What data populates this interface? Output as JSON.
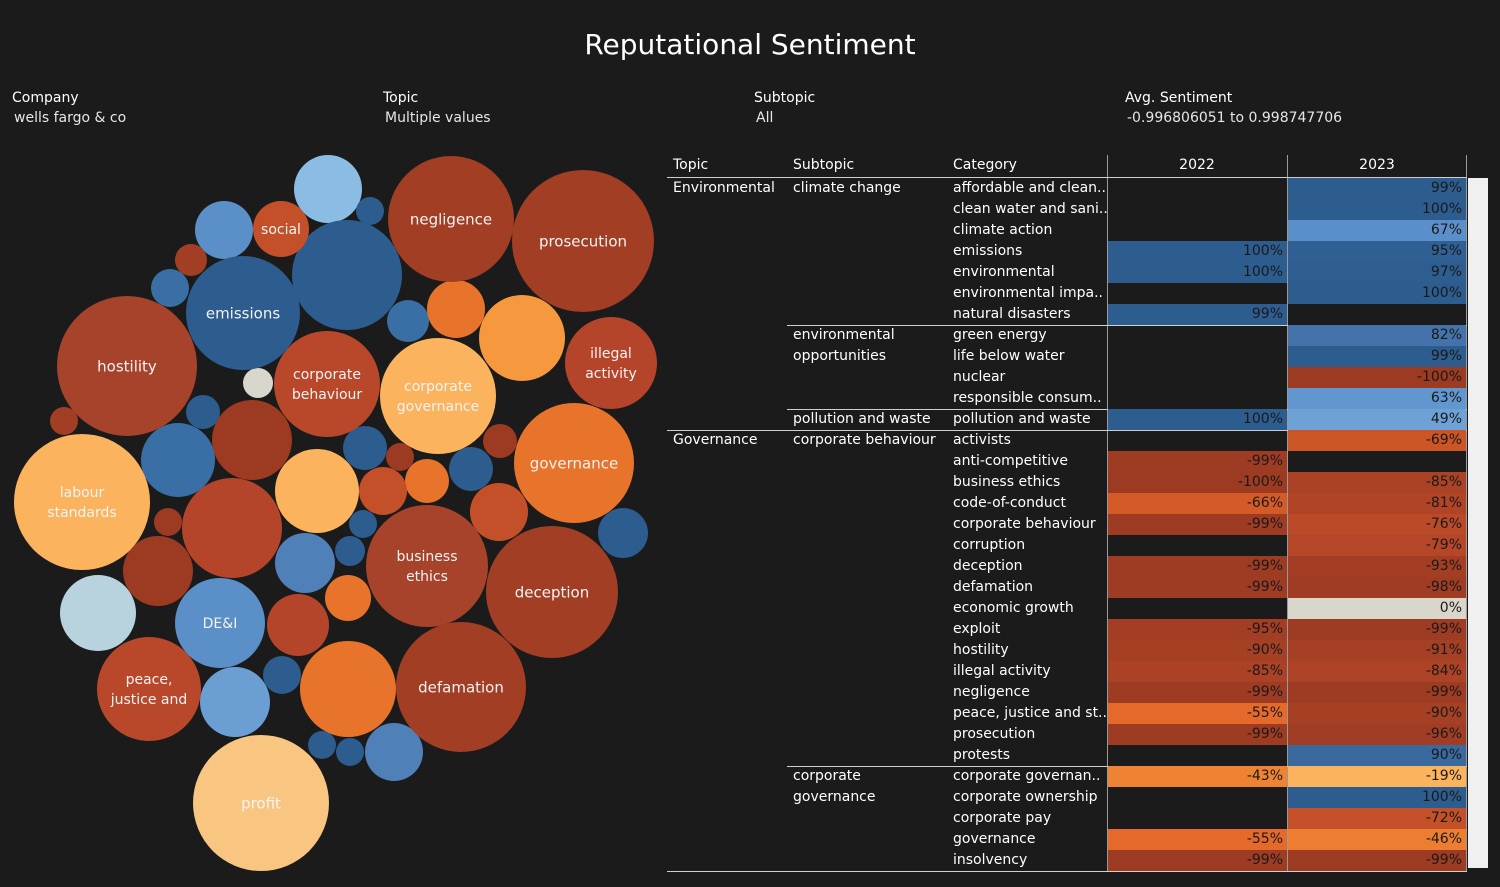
{
  "title": "Reputational Sentiment",
  "filters": {
    "company": {
      "label": "Company",
      "value": "wells fargo & co"
    },
    "topic": {
      "label": "Topic",
      "value": "Multiple values"
    },
    "subtopic": {
      "label": "Subtopic",
      "value": "All"
    },
    "avg_sentiment": {
      "label": "Avg. Sentiment",
      "value": "-0.996806051 to 0.998747706"
    }
  },
  "colors": {
    "background": "#1b1b1b",
    "positive_dark": "#2d5c8f",
    "positive_mid": "#4f80b8",
    "positive_light": "#6b9fd4",
    "negative_dark": "#9c3a22",
    "negative_mid": "#c4502a",
    "negative_orange": "#e8732b",
    "negative_light": "#f7b36a",
    "neutral": "#d9d6cc"
  },
  "chart_data": [
    {
      "type": "bubble",
      "bubbles": [
        {
          "label": "prosecution",
          "color": "#a23e24"
        },
        {
          "label": "negligence",
          "color": "#a23e24"
        },
        {
          "label": "social",
          "color": "#c4502a"
        },
        {
          "label": "emissions",
          "color": "#2d5c8f"
        },
        {
          "label": "hostility",
          "color": "#a7432a"
        },
        {
          "label": "corporate behaviour",
          "color": "#b9482a"
        },
        {
          "label": "corporate governance",
          "color": "#fbb35e"
        },
        {
          "label": "illegal activity",
          "color": "#b5452a"
        },
        {
          "label": "governance",
          "color": "#e8732b"
        },
        {
          "label": "labour standards",
          "color": "#fbb35e"
        },
        {
          "label": "business ethics",
          "color": "#a7432a"
        },
        {
          "label": "deception",
          "color": "#a23e24"
        },
        {
          "label": "DE&I",
          "color": "#5a8fc8"
        },
        {
          "label": "peace, justice and",
          "color": "#b9482a"
        },
        {
          "label": "defamation",
          "color": "#a23e24"
        },
        {
          "label": "profit",
          "color": "#f8c680"
        }
      ]
    },
    {
      "type": "table",
      "columns": [
        "Topic",
        "Subtopic",
        "Category",
        "2022",
        "2023"
      ],
      "rows": [
        {
          "topic": "Environmental",
          "subtopic": "climate change",
          "category": "affordable and clean..",
          "y2022": "",
          "c2022": "",
          "y2023": "99%",
          "c2023": "#2d5c8f"
        },
        {
          "topic": "",
          "subtopic": "",
          "category": "clean water and sani..",
          "y2022": "",
          "c2022": "",
          "y2023": "100%",
          "c2023": "#2d5c8f"
        },
        {
          "topic": "",
          "subtopic": "",
          "category": "climate action",
          "y2022": "",
          "c2022": "",
          "y2023": "67%",
          "c2023": "#5b8fc9"
        },
        {
          "topic": "",
          "subtopic": "",
          "category": "emissions",
          "y2022": "100%",
          "c2022": "#2d5c8f",
          "y2023": "95%",
          "c2023": "#305f93"
        },
        {
          "topic": "",
          "subtopic": "",
          "category": "environmental",
          "y2022": "100%",
          "c2022": "#2d5c8f",
          "y2023": "97%",
          "c2023": "#2e5d90"
        },
        {
          "topic": "",
          "subtopic": "",
          "category": "environmental impa..",
          "y2022": "",
          "c2022": "",
          "y2023": "100%",
          "c2023": "#2d5c8f"
        },
        {
          "topic": "",
          "subtopic": "",
          "category": "natural disasters",
          "y2022": "99%",
          "c2022": "#2d5c8f",
          "y2023": "",
          "c2023": ""
        },
        {
          "topic": "",
          "subtopic": "environmental opportunities",
          "category": "green energy",
          "y2022": "",
          "c2022": "",
          "y2023": "82%",
          "c2023": "#4473ab"
        },
        {
          "topic": "",
          "subtopic": "",
          "category": "life below water",
          "y2022": "",
          "c2022": "",
          "y2023": "99%",
          "c2023": "#2d5c8f"
        },
        {
          "topic": "",
          "subtopic": "",
          "category": "nuclear",
          "y2022": "",
          "c2022": "",
          "y2023": "-100%",
          "c2023": "#9c3a22"
        },
        {
          "topic": "",
          "subtopic": "",
          "category": "responsible consum..",
          "y2022": "",
          "c2022": "",
          "y2023": "63%",
          "c2023": "#6196ce"
        },
        {
          "topic": "",
          "subtopic": "pollution and waste",
          "category": "pollution and waste",
          "y2022": "100%",
          "c2022": "#2d5c8f",
          "y2023": "49%",
          "c2023": "#6ea2d6"
        },
        {
          "topic": "Governance",
          "subtopic": "corporate behaviour",
          "category": "activists",
          "y2022": "",
          "c2022": "",
          "y2023": "-69%",
          "c2023": "#cc5526"
        },
        {
          "topic": "",
          "subtopic": "",
          "category": "anti-competitive",
          "y2022": "-99%",
          "c2022": "#9e3b23",
          "y2023": "",
          "c2023": ""
        },
        {
          "topic": "",
          "subtopic": "",
          "category": "business ethics",
          "y2022": "-100%",
          "c2022": "#9c3a22",
          "y2023": "-85%",
          "c2023": "#ab4226"
        },
        {
          "topic": "",
          "subtopic": "",
          "category": "code-of-conduct",
          "y2022": "-66%",
          "c2022": "#d45b27",
          "y2023": "-81%",
          "c2023": "#b14427"
        },
        {
          "topic": "",
          "subtopic": "",
          "category": "corporate behaviour",
          "y2022": "-99%",
          "c2022": "#9e3b23",
          "y2023": "-76%",
          "c2023": "#bb4a28"
        },
        {
          "topic": "",
          "subtopic": "",
          "category": "corruption",
          "y2022": "",
          "c2022": "",
          "y2023": "-79%",
          "c2023": "#b54628"
        },
        {
          "topic": "",
          "subtopic": "",
          "category": "deception",
          "y2022": "-99%",
          "c2022": "#9e3b23",
          "y2023": "-93%",
          "c2023": "#a33e24"
        },
        {
          "topic": "",
          "subtopic": "",
          "category": "defamation",
          "y2022": "-99%",
          "c2022": "#9e3b23",
          "y2023": "-98%",
          "c2023": "#9f3c23"
        },
        {
          "topic": "",
          "subtopic": "",
          "category": "economic growth",
          "y2022": "",
          "c2022": "",
          "y2023": "0%",
          "c2023": "#d9d6cc"
        },
        {
          "topic": "",
          "subtopic": "",
          "category": "exploit",
          "y2022": "-95%",
          "c2022": "#a33e24",
          "y2023": "-99%",
          "c2023": "#9e3b23"
        },
        {
          "topic": "",
          "subtopic": "",
          "category": "hostility",
          "y2022": "-90%",
          "c2022": "#a64025",
          "y2023": "-91%",
          "c2023": "#a54025"
        },
        {
          "topic": "",
          "subtopic": "",
          "category": "illegal activity",
          "y2022": "-85%",
          "c2022": "#ab4226",
          "y2023": "-84%",
          "c2023": "#ac4326"
        },
        {
          "topic": "",
          "subtopic": "",
          "category": "negligence",
          "y2022": "-99%",
          "c2022": "#9e3b23",
          "y2023": "-99%",
          "c2023": "#9e3b23"
        },
        {
          "topic": "",
          "subtopic": "",
          "category": "peace, justice and st..",
          "y2022": "-55%",
          "c2022": "#e4692a",
          "y2023": "-90%",
          "c2023": "#a64025"
        },
        {
          "topic": "",
          "subtopic": "",
          "category": "prosecution",
          "y2022": "-99%",
          "c2022": "#9e3b23",
          "y2023": "-96%",
          "c2023": "#a13d24"
        },
        {
          "topic": "",
          "subtopic": "",
          "category": "protests",
          "y2022": "",
          "c2022": "",
          "y2023": "90%",
          "c2023": "#3a699f"
        },
        {
          "topic": "",
          "subtopic": "corporate governance",
          "category": "corporate governan..",
          "y2022": "-43%",
          "c2022": "#ee8433",
          "y2023": "-19%",
          "c2023": "#fbb35e"
        },
        {
          "topic": "",
          "subtopic": "",
          "category": "corporate ownership",
          "y2022": "",
          "c2022": "",
          "y2023": "100%",
          "c2023": "#2d5c8f"
        },
        {
          "topic": "",
          "subtopic": "",
          "category": "corporate pay",
          "y2022": "",
          "c2022": "",
          "y2023": "-72%",
          "c2023": "#c4502a"
        },
        {
          "topic": "",
          "subtopic": "",
          "category": "governance",
          "y2022": "-55%",
          "c2022": "#e4692a",
          "y2023": "-46%",
          "c2023": "#ed7e31"
        },
        {
          "topic": "",
          "subtopic": "",
          "category": "insolvency",
          "y2022": "-99%",
          "c2022": "#9e3b23",
          "y2023": "-99%",
          "c2023": "#9e3b23"
        }
      ]
    }
  ]
}
